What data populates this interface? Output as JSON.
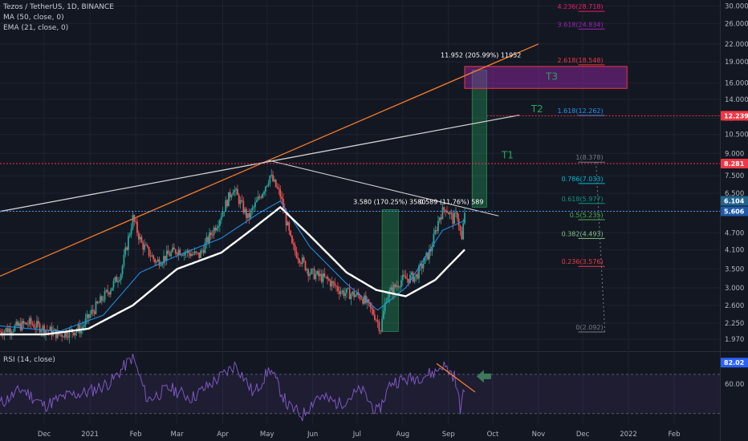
{
  "legend": {
    "symbol": "Tezos / TetherUS, 1D, BINANCE",
    "ma": "MA (50, close, 0)",
    "ema": "EMA (21, close, 0)",
    "rsi": "RSI (14, close)"
  },
  "price_badges": [
    {
      "label": "12.239",
      "value": 12.239,
      "color": "#f23645"
    },
    {
      "label": "8.281",
      "value": 8.281,
      "color": "#f23645"
    },
    {
      "label": "6.104",
      "value": 6.104,
      "color": "#22658c"
    },
    {
      "label": "5.606",
      "value": 5.606,
      "color": "#1e5aa8"
    }
  ],
  "rsi_badge": {
    "label": "82.02",
    "value": 82.02,
    "color": "#2962ff"
  },
  "colors": {
    "background": "#131722",
    "up": "#26a69a",
    "down": "#ef5350",
    "ma": "#ffffff",
    "ema": "#2196f3",
    "trend_orange": "#f57c2a",
    "trend_white": "#d0d0d0",
    "rsi": "#7e57c2",
    "target_box": "#9c27b0",
    "arrow": "#3d7a5a"
  },
  "annotations": {
    "t1": "T1",
    "t2": "T2",
    "t3": "T3",
    "measure_big": "11.952 (205.99%) 11952",
    "measure_left": "3.580 (170.25%) 3580",
    "measure_right": "0.589 (11.76%) 589"
  },
  "fib_levels": [
    {
      "label": "4.236(28.718)",
      "value": 28.718,
      "color": "#e91e63"
    },
    {
      "label": "3.618(24.834)",
      "value": 24.834,
      "color": "#9c27b0"
    },
    {
      "label": "2.618(18.548)",
      "value": 18.548,
      "color": "#f23645"
    },
    {
      "label": "1.618(12.262)",
      "value": 12.262,
      "color": "#2196f3"
    },
    {
      "label": "1(8.378)",
      "value": 8.378,
      "color": "#787b86"
    },
    {
      "label": "0.786(7.033)",
      "value": 7.033,
      "color": "#00bcd4"
    },
    {
      "label": "0.618(5.977)",
      "value": 5.977,
      "color": "#089981"
    },
    {
      "label": "0.5(5.235)",
      "value": 5.235,
      "color": "#4caf50"
    },
    {
      "label": "0.382(4.493)",
      "value": 4.493,
      "color": "#81c784"
    },
    {
      "label": "0.236(3.576)",
      "value": 3.576,
      "color": "#f23645"
    },
    {
      "label": "0(2.092)",
      "value": 2.092,
      "color": "#787b86"
    }
  ],
  "chart_data": {
    "type": "candlestick",
    "scale": "log",
    "ylim": [
      1.8,
      31.5
    ],
    "y_ticks": [
      "30.000",
      "26.000",
      "22.000",
      "19.000",
      "16.000",
      "14.000",
      "12.000",
      "10.500",
      "9.000",
      "7.500",
      "6.500",
      "5.600",
      "4.700",
      "4.100",
      "3.500",
      "3.000",
      "2.600",
      "2.250",
      "1.970"
    ],
    "y_tick_values": [
      30,
      26,
      22,
      19,
      16,
      14,
      12,
      10.5,
      9,
      7.5,
      6.5,
      5.6,
      4.7,
      4.1,
      3.5,
      3.0,
      2.6,
      2.25,
      1.97
    ],
    "x_ticks": [
      "Dec",
      "2021",
      "Feb",
      "Mar",
      "Apr",
      "May",
      "Jun",
      "Jul",
      "Aug",
      "Sep",
      "Oct",
      "Nov",
      "Dec",
      "2022",
      "Feb"
    ],
    "x_tick_days": [
      30,
      61,
      92,
      120,
      151,
      181,
      212,
      242,
      273,
      304,
      334,
      365,
      395,
      426,
      457
    ],
    "x_start_date": "2020-11-01",
    "x_end_day": 488,
    "price_anchors": [
      {
        "day": 0,
        "price": 2.1
      },
      {
        "day": 20,
        "price": 2.25
      },
      {
        "day": 40,
        "price": 2.05
      },
      {
        "day": 55,
        "price": 2.15
      },
      {
        "day": 62,
        "price": 2.45
      },
      {
        "day": 75,
        "price": 3.0
      },
      {
        "day": 82,
        "price": 3.4
      },
      {
        "day": 90,
        "price": 5.3
      },
      {
        "day": 96,
        "price": 4.3
      },
      {
        "day": 106,
        "price": 3.7
      },
      {
        "day": 120,
        "price": 4.1
      },
      {
        "day": 135,
        "price": 3.9
      },
      {
        "day": 148,
        "price": 5.2
      },
      {
        "day": 158,
        "price": 6.8
      },
      {
        "day": 168,
        "price": 5.3
      },
      {
        "day": 176,
        "price": 6.3
      },
      {
        "day": 183,
        "price": 7.5
      },
      {
        "day": 190,
        "price": 6.4
      },
      {
        "day": 198,
        "price": 4.2
      },
      {
        "day": 210,
        "price": 3.4
      },
      {
        "day": 222,
        "price": 3.2
      },
      {
        "day": 232,
        "price": 2.9
      },
      {
        "day": 245,
        "price": 2.8
      },
      {
        "day": 254,
        "price": 2.4
      },
      {
        "day": 258,
        "price": 2.15
      },
      {
        "day": 262,
        "price": 2.8
      },
      {
        "day": 272,
        "price": 3.2
      },
      {
        "day": 282,
        "price": 3.3
      },
      {
        "day": 292,
        "price": 4.1
      },
      {
        "day": 298,
        "price": 5.4
      },
      {
        "day": 302,
        "price": 5.8
      },
      {
        "day": 307,
        "price": 5.25
      },
      {
        "day": 310,
        "price": 5.45
      },
      {
        "day": 313,
        "price": 4.4
      },
      {
        "day": 315,
        "price": 5.6
      }
    ],
    "ma50": [
      {
        "day": 0,
        "price": 2.05
      },
      {
        "day": 30,
        "price": 2.05
      },
      {
        "day": 60,
        "price": 2.15
      },
      {
        "day": 90,
        "price": 2.6
      },
      {
        "day": 120,
        "price": 3.5
      },
      {
        "day": 150,
        "price": 4.0
      },
      {
        "day": 170,
        "price": 4.8
      },
      {
        "day": 190,
        "price": 5.8
      },
      {
        "day": 210,
        "price": 4.6
      },
      {
        "day": 235,
        "price": 3.4
      },
      {
        "day": 255,
        "price": 2.95
      },
      {
        "day": 275,
        "price": 2.8
      },
      {
        "day": 295,
        "price": 3.2
      },
      {
        "day": 315,
        "price": 4.1
      }
    ],
    "ema21": [
      {
        "day": 0,
        "price": 2.2
      },
      {
        "day": 40,
        "price": 2.1
      },
      {
        "day": 70,
        "price": 2.4
      },
      {
        "day": 95,
        "price": 3.4
      },
      {
        "day": 120,
        "price": 3.9
      },
      {
        "day": 150,
        "price": 4.5
      },
      {
        "day": 175,
        "price": 5.5
      },
      {
        "day": 190,
        "price": 6.1
      },
      {
        "day": 210,
        "price": 4.2
      },
      {
        "day": 235,
        "price": 3.1
      },
      {
        "day": 256,
        "price": 2.5
      },
      {
        "day": 275,
        "price": 3.0
      },
      {
        "day": 300,
        "price": 4.8
      },
      {
        "day": 315,
        "price": 5.2
      }
    ],
    "trend_orange": [
      {
        "day": 0,
        "price": 3.3
      },
      {
        "day": 365,
        "price": 22.0
      }
    ],
    "trend_white_upper": [
      {
        "day": 0,
        "price": 5.6
      },
      {
        "day": 182,
        "price": 8.4
      },
      {
        "day": 352,
        "price": 12.3
      }
    ],
    "trend_white_down": [
      {
        "day": 182,
        "price": 8.5
      },
      {
        "day": 338,
        "price": 5.4
      }
    ],
    "target_box": {
      "day_start": 315,
      "day_end": 425,
      "price_low": 15.3,
      "price_high": 18.3
    },
    "measure_big": {
      "day_start": 320,
      "day_end": 330,
      "price_low": 5.8,
      "price_high": 17.75
    },
    "measure_left": {
      "day_start": 259,
      "day_end": 270,
      "price_low": 2.1,
      "price_high": 5.68
    },
    "rsi": {
      "ylim": [
        20,
        92
      ],
      "tick_label": "60.00",
      "tick_value": 60,
      "upper_band": 70,
      "lower_band": 30,
      "anchors": [
        {
          "day": 0,
          "price": 40
        },
        {
          "day": 15,
          "price": 55
        },
        {
          "day": 30,
          "price": 38
        },
        {
          "day": 45,
          "price": 48
        },
        {
          "day": 60,
          "price": 52
        },
        {
          "day": 75,
          "price": 62
        },
        {
          "day": 90,
          "price": 88
        },
        {
          "day": 100,
          "price": 44
        },
        {
          "day": 115,
          "price": 56
        },
        {
          "day": 130,
          "price": 46
        },
        {
          "day": 150,
          "price": 68
        },
        {
          "day": 160,
          "price": 80
        },
        {
          "day": 172,
          "price": 50
        },
        {
          "day": 183,
          "price": 76
        },
        {
          "day": 195,
          "price": 38
        },
        {
          "day": 205,
          "price": 28
        },
        {
          "day": 215,
          "price": 48
        },
        {
          "day": 230,
          "price": 40
        },
        {
          "day": 245,
          "price": 54
        },
        {
          "day": 256,
          "price": 30
        },
        {
          "day": 265,
          "price": 62
        },
        {
          "day": 280,
          "price": 66
        },
        {
          "day": 295,
          "price": 72
        },
        {
          "day": 300,
          "price": 80
        },
        {
          "day": 308,
          "price": 68
        },
        {
          "day": 312,
          "price": 36
        },
        {
          "day": 315,
          "price": 54
        }
      ],
      "divergence": [
        {
          "day": 296,
          "price": 81
        },
        {
          "day": 322,
          "price": 52
        }
      ]
    }
  }
}
